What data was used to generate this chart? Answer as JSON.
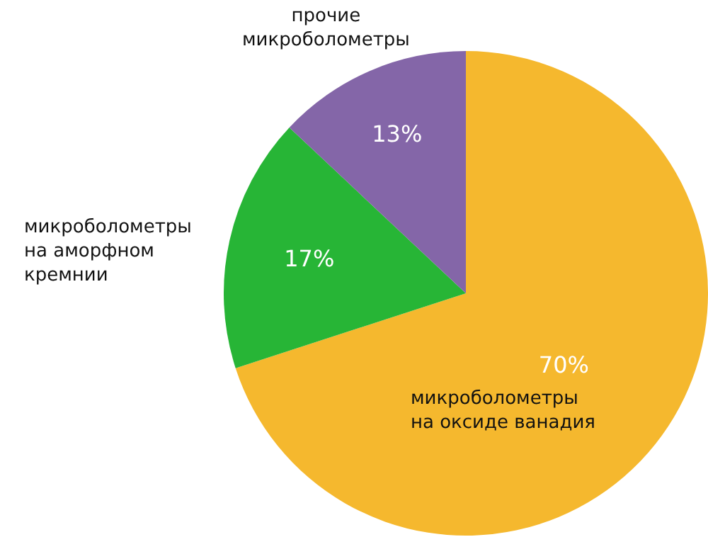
{
  "chart_data": {
    "type": "pie",
    "categories": [
      "микроболометры\nна оксиде ванадия",
      "микроболометры\nна аморфном\nкремнии",
      "прочие\nмикроболометры"
    ],
    "values": [
      70,
      17,
      13
    ],
    "colors": [
      "#f5b82e",
      "#27b536",
      "#8466a8"
    ],
    "value_labels": [
      "70%",
      "17%",
      "13%"
    ]
  }
}
